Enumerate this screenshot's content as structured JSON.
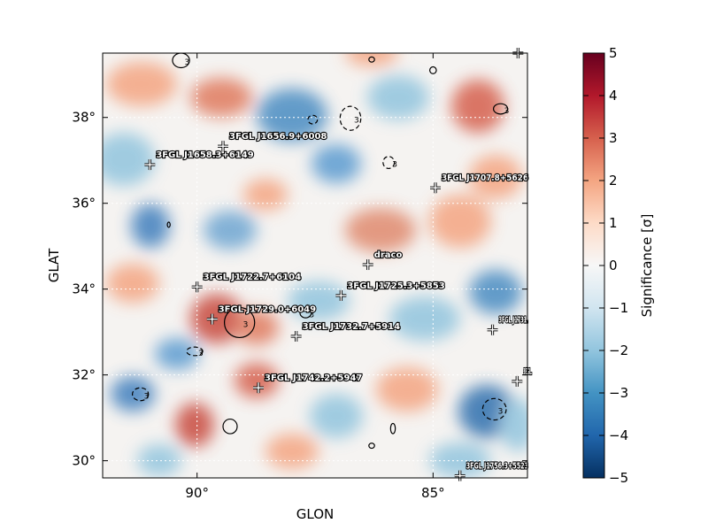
{
  "chart_data": {
    "type": "heatmap",
    "xlabel": "GLON",
    "ylabel": "GLAT",
    "xlim": [
      92.0,
      83.0
    ],
    "ylim": [
      29.6,
      39.5
    ],
    "x_ticks": [
      {
        "value": 90,
        "label": "90°"
      },
      {
        "value": 85,
        "label": "85°"
      }
    ],
    "y_ticks": [
      {
        "value": 30,
        "label": "30°"
      },
      {
        "value": 32,
        "label": "32°"
      },
      {
        "value": 34,
        "label": "34°"
      },
      {
        "value": 36,
        "label": "36°"
      },
      {
        "value": 38,
        "label": "38°"
      }
    ],
    "grid": true,
    "colorbar": {
      "label": "Significance [σ]",
      "range": [
        -5,
        5
      ],
      "ticks": [
        {
          "value": 5,
          "label": "5"
        },
        {
          "value": 4,
          "label": "4"
        },
        {
          "value": 3,
          "label": "3"
        },
        {
          "value": 2,
          "label": "2"
        },
        {
          "value": 1,
          "label": "1"
        },
        {
          "value": 0,
          "label": "0"
        },
        {
          "value": -1,
          "label": "−1"
        },
        {
          "value": -2,
          "label": "−2"
        },
        {
          "value": -3,
          "label": "−3"
        },
        {
          "value": -4,
          "label": "−4"
        },
        {
          "value": -5,
          "label": "−5"
        }
      ],
      "colormap": "RdBu_r"
    },
    "sources": [
      {
        "name": "3FGL J1656.9+6008",
        "glon": 89.45,
        "glat": 37.33
      },
      {
        "name": "3FGL J1658.3+6149",
        "glon": 91.0,
        "glat": 36.9
      },
      {
        "name": "3FGL J1707.8+5626",
        "glon": 84.95,
        "glat": 36.36
      },
      {
        "name": "draco",
        "glon": 86.38,
        "glat": 34.57
      },
      {
        "name": "3FGL J1722.7+6104",
        "glon": 90.0,
        "glat": 34.05
      },
      {
        "name": "3FGL J1725.3+5853",
        "glon": 86.95,
        "glat": 33.85
      },
      {
        "name": "3FGL J1729.0+6049",
        "glon": 89.68,
        "glat": 33.3
      },
      {
        "name": "3FGL J1732.7+5914",
        "glon": 87.9,
        "glat": 32.9
      },
      {
        "name": "3FGL J1731.",
        "glon": 83.74,
        "glat": 33.05
      },
      {
        "name": "3FGL J1742.2+5947",
        "glon": 88.7,
        "glat": 31.7
      },
      {
        "name": "3FGL.",
        "glon": 83.22,
        "glat": 31.85
      },
      {
        "name": "3FGL J1756.3+5523",
        "glon": 84.43,
        "glat": 29.65
      },
      {
        "name": "",
        "glon": 83.2,
        "glat": 39.5
      }
    ],
    "contours": [
      {
        "glon": 90.34,
        "glat": 39.33,
        "rx": 0.18,
        "ry": 0.17,
        "level": 3,
        "dashed": false,
        "label": "3"
      },
      {
        "glon": 89.1,
        "glat": 33.22,
        "rx": 0.32,
        "ry": 0.35,
        "level": 3,
        "dashed": false,
        "label": "3"
      },
      {
        "glon": 89.3,
        "glat": 30.8,
        "rx": 0.15,
        "ry": 0.17,
        "level": 3,
        "dashed": false,
        "label": ""
      },
      {
        "glon": 86.3,
        "glat": 30.35,
        "rx": 0.06,
        "ry": 0.06,
        "level": 3,
        "dashed": false,
        "label": ""
      },
      {
        "glon": 86.3,
        "glat": 39.35,
        "rx": 0.06,
        "ry": 0.06,
        "level": 3,
        "dashed": false,
        "label": ""
      },
      {
        "glon": 87.7,
        "glat": 33.45,
        "rx": 0.12,
        "ry": 0.12,
        "level": 3,
        "dashed": false,
        "label": "3"
      },
      {
        "glon": 83.57,
        "glat": 38.2,
        "rx": 0.15,
        "ry": 0.12,
        "level": 3,
        "dashed": false,
        "label": "3"
      },
      {
        "glon": 86.75,
        "glat": 37.98,
        "rx": 0.22,
        "ry": 0.28,
        "level": -3,
        "dashed": true,
        "label": "3"
      },
      {
        "glon": 85.94,
        "glat": 36.95,
        "rx": 0.12,
        "ry": 0.14,
        "level": -3,
        "dashed": true,
        "label": "3"
      },
      {
        "glon": 83.7,
        "glat": 31.2,
        "rx": 0.25,
        "ry": 0.25,
        "level": -3,
        "dashed": true,
        "label": "3"
      },
      {
        "glon": 91.2,
        "glat": 31.55,
        "rx": 0.17,
        "ry": 0.15,
        "level": -3,
        "dashed": true,
        "label": "3"
      },
      {
        "glon": 90.05,
        "glat": 32.55,
        "rx": 0.17,
        "ry": 0.1,
        "level": -3,
        "dashed": true,
        "label": "3"
      },
      {
        "glon": 87.55,
        "glat": 37.95,
        "rx": 0.1,
        "ry": 0.1,
        "level": -3,
        "dashed": true,
        "label": ""
      },
      {
        "glon": 85.0,
        "glat": 39.1,
        "rx": 0.07,
        "ry": 0.08,
        "level": -3,
        "dashed": false,
        "label": ""
      },
      {
        "glon": 85.85,
        "glat": 30.75,
        "rx": 0.05,
        "ry": 0.12,
        "level": -3,
        "dashed": false,
        "label": ""
      },
      {
        "glon": 90.6,
        "glat": 35.5,
        "rx": 0.03,
        "ry": 0.06,
        "level": -3,
        "dashed": false,
        "label": ""
      }
    ]
  }
}
